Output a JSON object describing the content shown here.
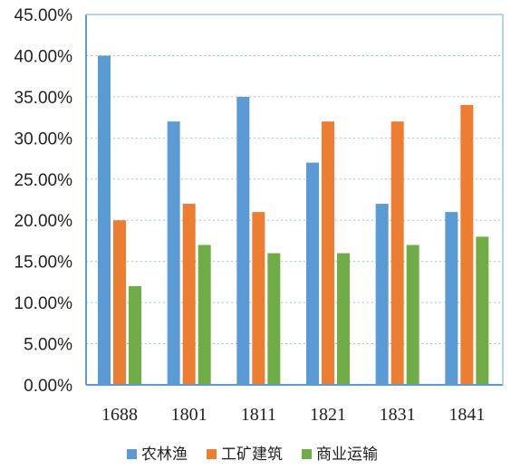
{
  "chart_data": {
    "type": "bar",
    "title": "",
    "xlabel": "",
    "ylabel": "",
    "categories": [
      "1688",
      "1801",
      "1811",
      "1821",
      "1831",
      "1841"
    ],
    "series": [
      {
        "name": "农林渔",
        "color": "#5b9bd5",
        "values": [
          40,
          32,
          35,
          27,
          22,
          21
        ]
      },
      {
        "name": "工矿建筑",
        "color": "#ed7d31",
        "values": [
          20,
          22,
          21,
          32,
          32,
          34
        ]
      },
      {
        "name": "商业运输",
        "color": "#70ad47",
        "values": [
          12,
          17,
          16,
          16,
          17,
          18
        ]
      }
    ],
    "ylim": [
      0,
      45
    ],
    "yticks": [
      "0.00%",
      "5.00%",
      "10.00%",
      "15.00%",
      "20.00%",
      "25.00%",
      "30.00%",
      "35.00%",
      "40.00%",
      "45.00%"
    ],
    "grid": true,
    "legend_position": "bottom"
  }
}
